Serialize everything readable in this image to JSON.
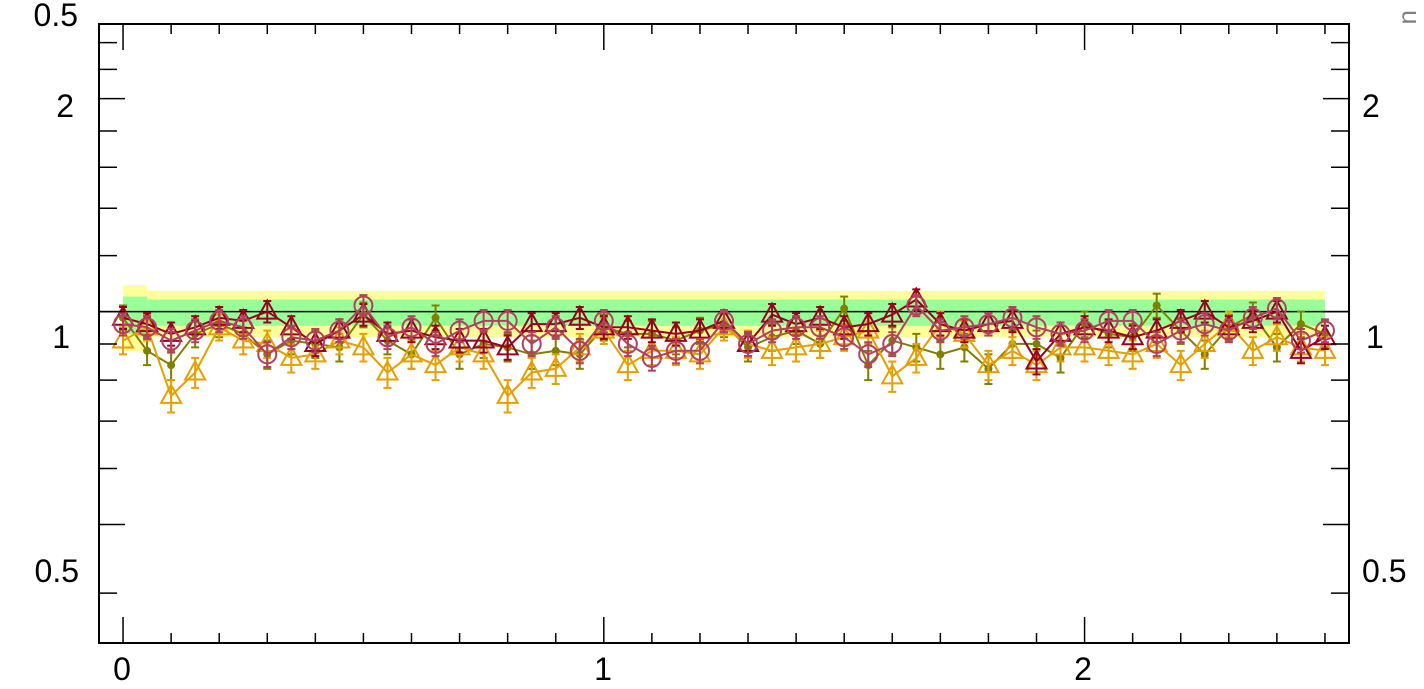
{
  "chart_data": {
    "type": "scatter",
    "title": "",
    "xlabel": "",
    "ylabel": "",
    "log_y": true,
    "xlim": [
      -0.05,
      2.55
    ],
    "ylim": [
      0.34,
      2.55
    ],
    "x_tick_labels": [
      "0",
      "1",
      "2"
    ],
    "y_tick_labels": [
      "0.5",
      "1",
      "2"
    ],
    "top_partial_label": "0.5",
    "right_partial_label": "n",
    "reference_line": 1,
    "colors": {
      "band_outer": "#ffff99",
      "band_inner": "#99ff99",
      "olive": "#7f7f00",
      "orange": "#e69f00",
      "darkred": "#99001f",
      "rose": "#b3405f"
    },
    "bands": [
      {
        "x0": 0.0,
        "x1": 0.05,
        "lo_outer": 0.88,
        "hi_outer": 1.09,
        "lo_inner": 0.93,
        "hi_inner": 1.05
      },
      {
        "x0": 0.05,
        "x1": 2.5,
        "lo_outer": 0.92,
        "hi_outer": 1.07,
        "lo_inner": 0.955,
        "hi_inner": 1.04
      }
    ],
    "x": [
      0.0,
      0.05,
      0.1,
      0.15,
      0.2,
      0.25,
      0.3,
      0.35,
      0.4,
      0.45,
      0.5,
      0.55,
      0.6,
      0.65,
      0.7,
      0.75,
      0.8,
      0.85,
      0.9,
      0.95,
      1.0,
      1.05,
      1.1,
      1.15,
      1.2,
      1.25,
      1.3,
      1.35,
      1.4,
      1.45,
      1.5,
      1.55,
      1.6,
      1.65,
      1.7,
      1.75,
      1.8,
      1.85,
      1.9,
      1.95,
      2.0,
      2.05,
      2.1,
      2.15,
      2.2,
      2.25,
      2.3,
      2.35,
      2.4,
      2.45,
      2.5
    ],
    "series": [
      {
        "marker": "dot",
        "color": "#7f7f00",
        "values": [
          0.98,
          0.88,
          0.84,
          0.93,
          0.96,
          0.93,
          0.87,
          0.91,
          0.9,
          0.89,
          0.99,
          0.91,
          0.87,
          0.98,
          0.87,
          0.9,
          0.89,
          0.87,
          0.88,
          0.87,
          0.95,
          0.93,
          0.93,
          0.91,
          0.94,
          0.96,
          0.89,
          0.92,
          0.94,
          0.9,
          1.01,
          0.84,
          0.91,
          0.89,
          0.87,
          0.89,
          0.83,
          0.9,
          0.9,
          0.86,
          0.96,
          0.93,
          0.92,
          1.02,
          0.94,
          0.87,
          0.95,
          0.99,
          0.89,
          0.96,
          0.93
        ],
        "errors": [
          0.04,
          0.04,
          0.04,
          0.04,
          0.04,
          0.04,
          0.04,
          0.04,
          0.04,
          0.04,
          0.04,
          0.04,
          0.04,
          0.04,
          0.04,
          0.04,
          0.04,
          0.04,
          0.04,
          0.04,
          0.04,
          0.04,
          0.04,
          0.04,
          0.04,
          0.04,
          0.04,
          0.04,
          0.04,
          0.04,
          0.04,
          0.04,
          0.04,
          0.04,
          0.04,
          0.04,
          0.04,
          0.04,
          0.04,
          0.04,
          0.04,
          0.04,
          0.04,
          0.04,
          0.04,
          0.04,
          0.04,
          0.04,
          0.04,
          0.04,
          0.04
        ]
      },
      {
        "marker": "open-triangle",
        "color": "#e69f00",
        "values": [
          0.91,
          0.95,
          0.76,
          0.82,
          0.95,
          0.91,
          0.9,
          0.86,
          0.87,
          0.91,
          0.89,
          0.82,
          0.87,
          0.84,
          0.89,
          0.87,
          0.76,
          0.82,
          0.83,
          0.89,
          0.94,
          0.84,
          0.88,
          0.88,
          0.87,
          0.95,
          0.9,
          0.88,
          0.89,
          0.9,
          0.92,
          0.94,
          0.81,
          0.86,
          0.96,
          0.93,
          0.84,
          0.88,
          0.84,
          0.89,
          0.89,
          0.88,
          0.87,
          0.9,
          0.84,
          0.9,
          0.96,
          0.88,
          0.92,
          0.89,
          0.88
        ],
        "errors": [
          0.04,
          0.04,
          0.04,
          0.04,
          0.04,
          0.04,
          0.04,
          0.04,
          0.04,
          0.04,
          0.04,
          0.04,
          0.04,
          0.04,
          0.04,
          0.04,
          0.04,
          0.04,
          0.04,
          0.04,
          0.04,
          0.04,
          0.04,
          0.04,
          0.04,
          0.04,
          0.04,
          0.04,
          0.04,
          0.04,
          0.04,
          0.04,
          0.04,
          0.04,
          0.04,
          0.04,
          0.04,
          0.04,
          0.04,
          0.04,
          0.04,
          0.04,
          0.04,
          0.04,
          0.04,
          0.04,
          0.04,
          0.04,
          0.04,
          0.04,
          0.04
        ]
      },
      {
        "marker": "open-triangle",
        "color": "#99001f",
        "values": [
          0.98,
          0.96,
          0.93,
          0.95,
          0.98,
          0.97,
          1.0,
          0.95,
          0.9,
          0.94,
          0.99,
          0.93,
          0.94,
          0.92,
          0.91,
          0.91,
          0.89,
          0.96,
          0.96,
          0.98,
          0.95,
          0.95,
          0.94,
          0.93,
          0.94,
          0.97,
          0.9,
          0.99,
          0.96,
          0.98,
          0.95,
          0.96,
          0.99,
          1.04,
          0.96,
          0.94,
          0.96,
          0.97,
          0.85,
          0.93,
          0.95,
          0.94,
          0.92,
          0.94,
          0.97,
          1.0,
          0.95,
          0.97,
          1.0,
          0.88,
          0.92
        ],
        "errors": [
          0.035,
          0.035,
          0.035,
          0.035,
          0.035,
          0.035,
          0.035,
          0.035,
          0.035,
          0.035,
          0.035,
          0.035,
          0.035,
          0.035,
          0.035,
          0.035,
          0.035,
          0.035,
          0.035,
          0.035,
          0.035,
          0.035,
          0.035,
          0.035,
          0.035,
          0.035,
          0.035,
          0.035,
          0.035,
          0.035,
          0.035,
          0.035,
          0.035,
          0.035,
          0.035,
          0.035,
          0.035,
          0.035,
          0.035,
          0.035,
          0.035,
          0.035,
          0.035,
          0.035,
          0.035,
          0.035,
          0.035,
          0.035,
          0.035,
          0.035,
          0.035
        ]
      },
      {
        "marker": "open-circle",
        "color": "#b3405f",
        "values": [
          0.96,
          0.95,
          0.91,
          0.94,
          0.97,
          0.95,
          0.87,
          0.92,
          0.91,
          0.94,
          1.02,
          0.92,
          0.95,
          0.9,
          0.94,
          0.97,
          0.97,
          0.9,
          0.95,
          0.88,
          0.97,
          0.9,
          0.86,
          0.88,
          0.88,
          0.97,
          0.9,
          0.94,
          0.95,
          0.95,
          0.92,
          0.87,
          0.9,
          1.02,
          0.94,
          0.95,
          0.96,
          0.98,
          0.95,
          0.93,
          0.94,
          0.97,
          0.97,
          0.9,
          0.94,
          0.96,
          0.94,
          0.98,
          1.01,
          0.91,
          0.94
        ],
        "errors": [
          0.035,
          0.035,
          0.035,
          0.035,
          0.035,
          0.035,
          0.035,
          0.035,
          0.035,
          0.035,
          0.035,
          0.035,
          0.035,
          0.035,
          0.035,
          0.035,
          0.035,
          0.035,
          0.035,
          0.035,
          0.035,
          0.035,
          0.035,
          0.035,
          0.035,
          0.035,
          0.035,
          0.035,
          0.035,
          0.035,
          0.035,
          0.035,
          0.035,
          0.035,
          0.035,
          0.035,
          0.035,
          0.035,
          0.035,
          0.035,
          0.035,
          0.035,
          0.035,
          0.035,
          0.035,
          0.035,
          0.035,
          0.035,
          0.035,
          0.035,
          0.035
        ]
      }
    ]
  }
}
